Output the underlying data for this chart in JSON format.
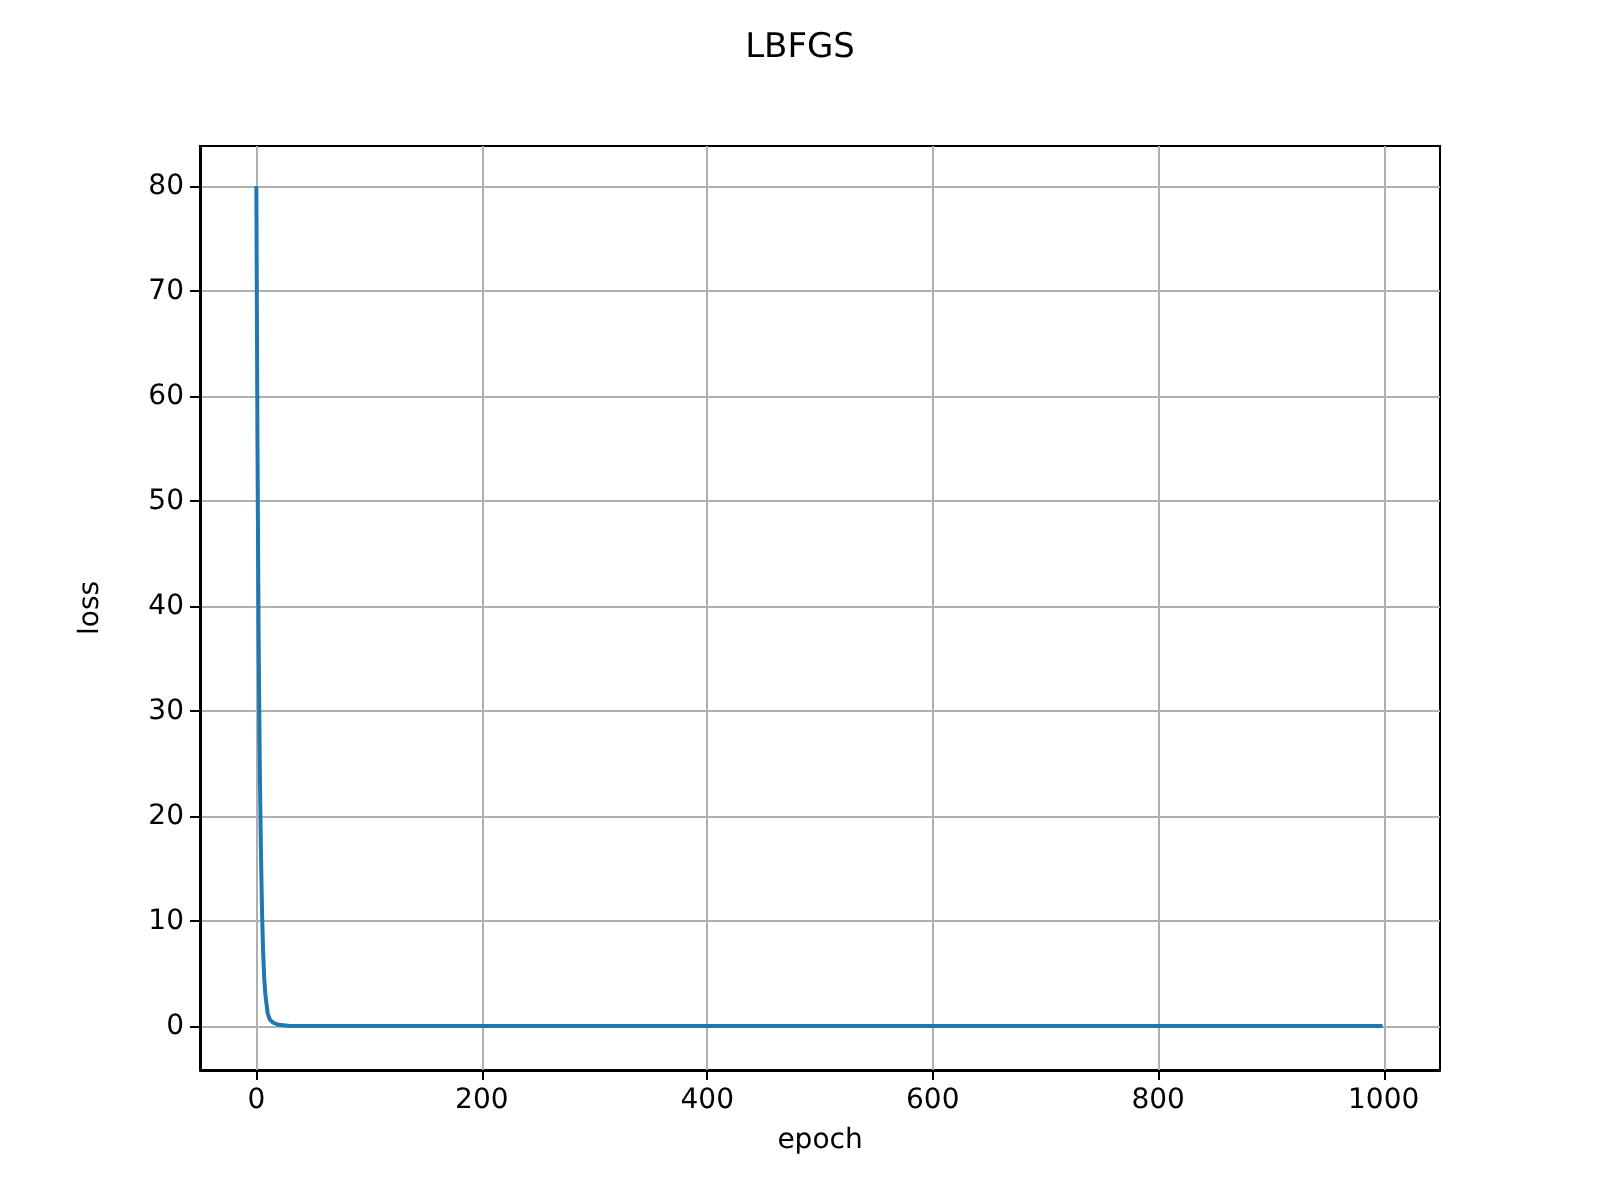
{
  "chart_data": {
    "type": "line",
    "title": "LBFGS",
    "xlabel": "epoch",
    "ylabel": "loss",
    "x": [
      0,
      1,
      2,
      3,
      4,
      5,
      6,
      7,
      8,
      10,
      12,
      15,
      20,
      30,
      50,
      100,
      200,
      400,
      600,
      800,
      999
    ],
    "series": [
      {
        "color": "#1f77b4",
        "values": [
          80,
          55,
          37,
          25,
          17,
          11,
          7,
          4.5,
          3,
          1.2,
          0.6,
          0.3,
          0.1,
          0,
          0,
          0,
          0,
          0,
          0,
          0,
          0
        ]
      }
    ],
    "xlim": [
      -50,
      1050
    ],
    "xticks": [
      0,
      200,
      400,
      600,
      800,
      1000
    ],
    "ylim": [
      -4.2,
      83.8
    ],
    "yticks": [
      0,
      10,
      20,
      30,
      40,
      50,
      60,
      70,
      80
    ],
    "grid": true,
    "marker": "none",
    "line_style": "solid"
  }
}
